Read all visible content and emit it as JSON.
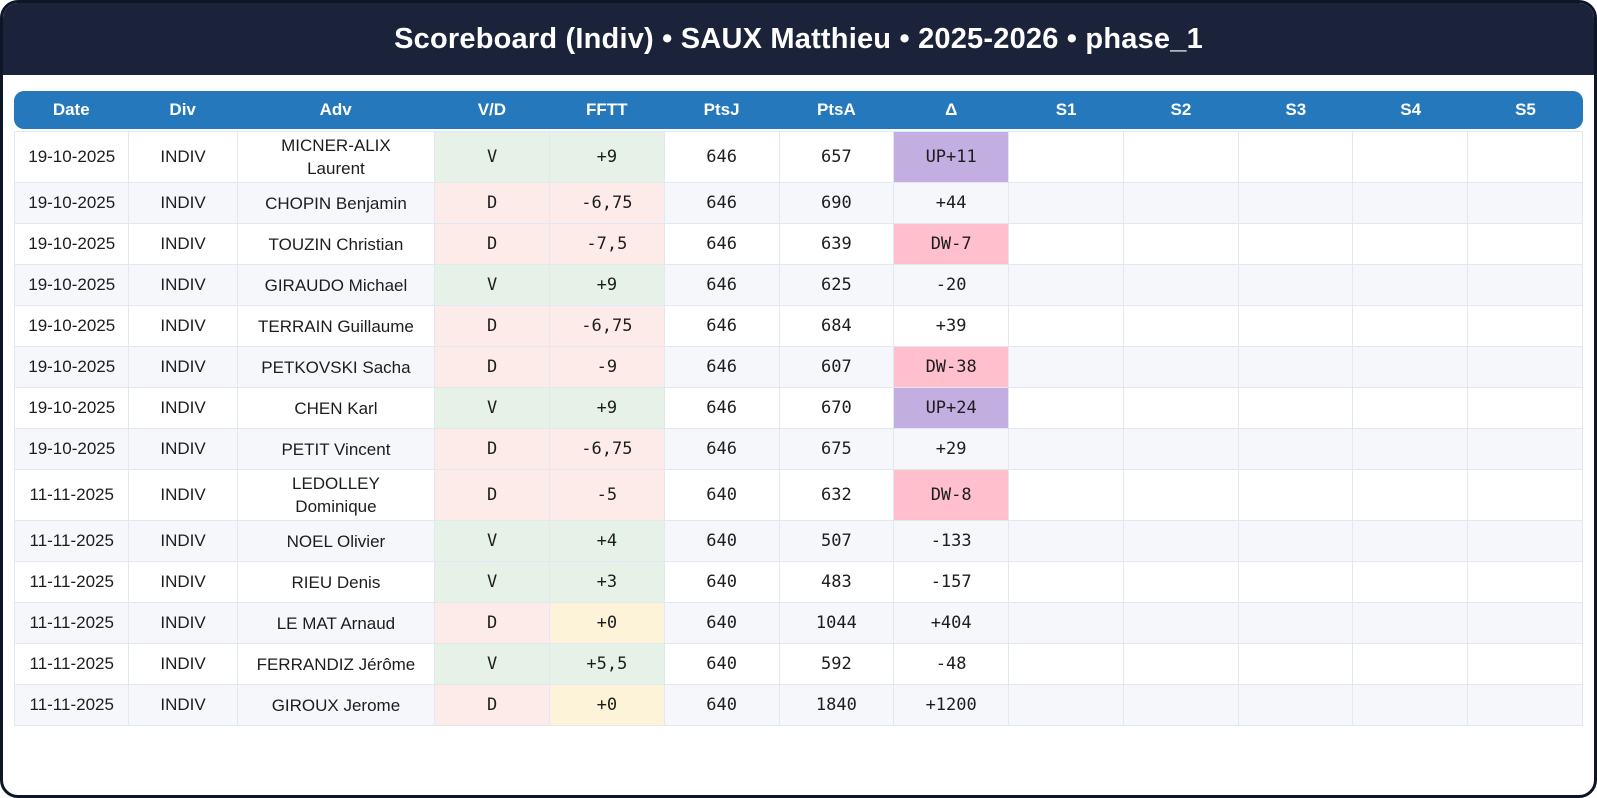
{
  "title": "Scoreboard (Indiv) • SAUX Matthieu • 2025-2026 • phase_1",
  "table": {
    "columns": [
      "Date",
      "Div",
      "Adv",
      "V/D",
      "FFTT",
      "PtsJ",
      "PtsA",
      "Δ",
      "S1",
      "S2",
      "S3",
      "S4",
      "S5"
    ],
    "rows": [
      {
        "date": "19-10-2025",
        "div": "INDIV",
        "adv": "MICNER-ALIX\nLaurent",
        "vd": "V",
        "vd_style": "win",
        "fftt": "+9",
        "fftt_style": "win",
        "ptsj": "646",
        "ptsa": "657",
        "delta": "UP+11",
        "delta_style": "up",
        "s1": "",
        "s2": "",
        "s3": "",
        "s4": "",
        "s5": ""
      },
      {
        "date": "19-10-2025",
        "div": "INDIV",
        "adv": "CHOPIN Benjamin",
        "vd": "D",
        "vd_style": "loss",
        "fftt": "-6,75",
        "fftt_style": "loss",
        "ptsj": "646",
        "ptsa": "690",
        "delta": "+44",
        "delta_style": "none",
        "s1": "",
        "s2": "",
        "s3": "",
        "s4": "",
        "s5": ""
      },
      {
        "date": "19-10-2025",
        "div": "INDIV",
        "adv": "TOUZIN Christian",
        "vd": "D",
        "vd_style": "loss",
        "fftt": "-7,5",
        "fftt_style": "loss",
        "ptsj": "646",
        "ptsa": "639",
        "delta": "DW-7",
        "delta_style": "down",
        "s1": "",
        "s2": "",
        "s3": "",
        "s4": "",
        "s5": ""
      },
      {
        "date": "19-10-2025",
        "div": "INDIV",
        "adv": "GIRAUDO Michael",
        "vd": "V",
        "vd_style": "win",
        "fftt": "+9",
        "fftt_style": "win",
        "ptsj": "646",
        "ptsa": "625",
        "delta": "-20",
        "delta_style": "none",
        "s1": "",
        "s2": "",
        "s3": "",
        "s4": "",
        "s5": ""
      },
      {
        "date": "19-10-2025",
        "div": "INDIV",
        "adv": "TERRAIN Guillaume",
        "vd": "D",
        "vd_style": "loss",
        "fftt": "-6,75",
        "fftt_style": "loss",
        "ptsj": "646",
        "ptsa": "684",
        "delta": "+39",
        "delta_style": "none",
        "s1": "",
        "s2": "",
        "s3": "",
        "s4": "",
        "s5": ""
      },
      {
        "date": "19-10-2025",
        "div": "INDIV",
        "adv": "PETKOVSKI Sacha",
        "vd": "D",
        "vd_style": "loss",
        "fftt": "-9",
        "fftt_style": "loss",
        "ptsj": "646",
        "ptsa": "607",
        "delta": "DW-38",
        "delta_style": "down",
        "s1": "",
        "s2": "",
        "s3": "",
        "s4": "",
        "s5": ""
      },
      {
        "date": "19-10-2025",
        "div": "INDIV",
        "adv": "CHEN Karl",
        "vd": "V",
        "vd_style": "win",
        "fftt": "+9",
        "fftt_style": "win",
        "ptsj": "646",
        "ptsa": "670",
        "delta": "UP+24",
        "delta_style": "up",
        "s1": "",
        "s2": "",
        "s3": "",
        "s4": "",
        "s5": ""
      },
      {
        "date": "19-10-2025",
        "div": "INDIV",
        "adv": "PETIT Vincent",
        "vd": "D",
        "vd_style": "loss",
        "fftt": "-6,75",
        "fftt_style": "loss",
        "ptsj": "646",
        "ptsa": "675",
        "delta": "+29",
        "delta_style": "none",
        "s1": "",
        "s2": "",
        "s3": "",
        "s4": "",
        "s5": ""
      },
      {
        "date": "11-11-2025",
        "div": "INDIV",
        "adv": "LEDOLLEY\nDominique",
        "vd": "D",
        "vd_style": "loss",
        "fftt": "-5",
        "fftt_style": "loss",
        "ptsj": "640",
        "ptsa": "632",
        "delta": "DW-8",
        "delta_style": "down",
        "s1": "",
        "s2": "",
        "s3": "",
        "s4": "",
        "s5": ""
      },
      {
        "date": "11-11-2025",
        "div": "INDIV",
        "adv": "NOEL Olivier",
        "vd": "V",
        "vd_style": "win",
        "fftt": "+4",
        "fftt_style": "win",
        "ptsj": "640",
        "ptsa": "507",
        "delta": "-133",
        "delta_style": "none",
        "s1": "",
        "s2": "",
        "s3": "",
        "s4": "",
        "s5": ""
      },
      {
        "date": "11-11-2025",
        "div": "INDIV",
        "adv": "RIEU Denis",
        "vd": "V",
        "vd_style": "win",
        "fftt": "+3",
        "fftt_style": "win",
        "ptsj": "640",
        "ptsa": "483",
        "delta": "-157",
        "delta_style": "none",
        "s1": "",
        "s2": "",
        "s3": "",
        "s4": "",
        "s5": ""
      },
      {
        "date": "11-11-2025",
        "div": "INDIV",
        "adv": "LE MAT Arnaud",
        "vd": "D",
        "vd_style": "loss",
        "fftt": "+0",
        "fftt_style": "zero",
        "ptsj": "640",
        "ptsa": "1044",
        "delta": "+404",
        "delta_style": "none",
        "s1": "",
        "s2": "",
        "s3": "",
        "s4": "",
        "s5": ""
      },
      {
        "date": "11-11-2025",
        "div": "INDIV",
        "adv": "FERRANDIZ Jérôme",
        "vd": "V",
        "vd_style": "win",
        "fftt": "+5,5",
        "fftt_style": "win",
        "ptsj": "640",
        "ptsa": "592",
        "delta": "-48",
        "delta_style": "none",
        "s1": "",
        "s2": "",
        "s3": "",
        "s4": "",
        "s5": ""
      },
      {
        "date": "11-11-2025",
        "div": "INDIV",
        "adv": "GIROUX Jerome",
        "vd": "D",
        "vd_style": "loss",
        "fftt": "+0",
        "fftt_style": "zero",
        "ptsj": "640",
        "ptsa": "1840",
        "delta": "+1200",
        "delta_style": "none",
        "s1": "",
        "s2": "",
        "s3": "",
        "s4": "",
        "s5": ""
      }
    ]
  },
  "colors": {
    "frame_border": "#0d1626",
    "title_bar_bg": "#1a2339",
    "header_bg": "#2478bb",
    "row_alt_bg": "#f5f7fb",
    "win_bg": "#e6f2e7",
    "win_text": "#2a7d3f",
    "loss_bg": "#fcebe9",
    "loss_text": "#c0392b",
    "zero_bg": "#fdf3d9",
    "zero_text": "#b8860b",
    "delta_up_bg": "#c3aee1",
    "delta_down_bg": "#ffbfcd"
  }
}
